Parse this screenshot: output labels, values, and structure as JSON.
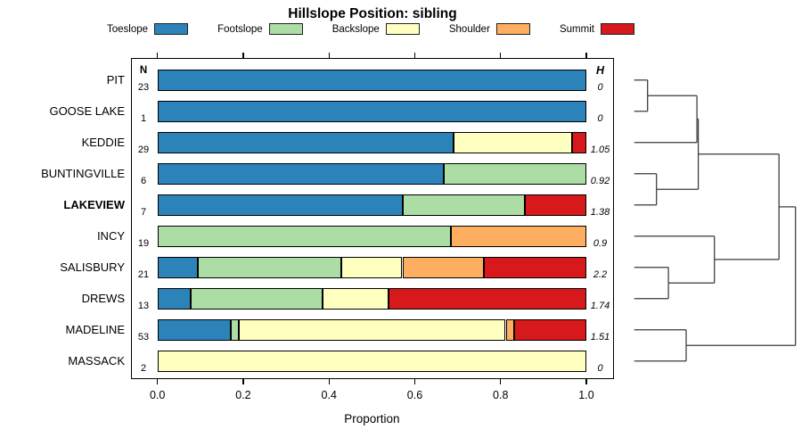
{
  "title": "Hillslope Position: sibling",
  "columns": {
    "n_header": "N",
    "h_header": "H"
  },
  "axis": {
    "xlabel": "Proportion"
  },
  "legend": [
    {
      "label": "Toeslope",
      "color": "#2B83BA"
    },
    {
      "label": "Footslope",
      "color": "#ABDDA4"
    },
    {
      "label": "Backslope",
      "color": "#FFFFBF"
    },
    {
      "label": "Shoulder",
      "color": "#FDAE61"
    },
    {
      "label": "Summit",
      "color": "#D7191C"
    }
  ],
  "chart_data": {
    "type": "bar",
    "variant": "horizontal-stacked-proportions-with-dendrogram",
    "title": "Hillslope Position: sibling",
    "xlabel": "Proportion",
    "xlim": [
      0,
      1
    ],
    "x_ticks": [
      0,
      0.2,
      0.4,
      0.6,
      0.8,
      1.0
    ],
    "x_tick_labels": [
      "0.0",
      "0.2",
      "0.4",
      "0.6",
      "0.8",
      "1.0"
    ],
    "categories": [
      "Toeslope",
      "Footslope",
      "Backslope",
      "Shoulder",
      "Summit"
    ],
    "colors": [
      "#2B83BA",
      "#ABDDA4",
      "#FFFFBF",
      "#FDAE61",
      "#D7191C"
    ],
    "rows": [
      {
        "name": "PIT",
        "n": 23,
        "h": "0",
        "bold": false,
        "proportions": [
          1,
          0,
          0,
          0,
          0
        ]
      },
      {
        "name": "GOOSE LAKE",
        "n": 1,
        "h": "0",
        "bold": false,
        "proportions": [
          1,
          0,
          0,
          0,
          0
        ]
      },
      {
        "name": "KEDDIE",
        "n": 29,
        "h": "1.05",
        "bold": false,
        "proportions": [
          0.69,
          0,
          0.276,
          0,
          0.034
        ]
      },
      {
        "name": "BUNTINGVILLE",
        "n": 6,
        "h": "0.92",
        "bold": false,
        "proportions": [
          0.667,
          0.333,
          0,
          0,
          0
        ]
      },
      {
        "name": "LAKEVIEW",
        "n": 7,
        "h": "1.38",
        "bold": true,
        "proportions": [
          0.571,
          0.286,
          0,
          0,
          0.143
        ]
      },
      {
        "name": "INCY",
        "n": 19,
        "h": "0.9",
        "bold": false,
        "proportions": [
          0,
          0.684,
          0,
          0.316,
          0
        ]
      },
      {
        "name": "SALISBURY",
        "n": 21,
        "h": "2.2",
        "bold": false,
        "proportions": [
          0.095,
          0.333,
          0.143,
          0.19,
          0.238
        ]
      },
      {
        "name": "DREWS",
        "n": 13,
        "h": "1.74",
        "bold": false,
        "proportions": [
          0.077,
          0.308,
          0.154,
          0,
          0.462
        ]
      },
      {
        "name": "MADELINE",
        "n": 53,
        "h": "1.51",
        "bold": false,
        "proportions": [
          0.17,
          0.019,
          0.623,
          0.019,
          0.17
        ]
      },
      {
        "name": "MASSACK",
        "n": 2,
        "h": "0",
        "bold": false,
        "proportions": [
          0,
          0,
          1,
          0,
          0
        ]
      }
    ],
    "dendrogram": {
      "h": 1.0,
      "c": [
        {
          "h": 0.898,
          "c": [
            {
              "h": 0.397,
              "c": [
                {
                  "h": 0.389,
                  "c": [
                    {
                      "h": 0.083,
                      "c": [
                        {
                          "leaf": "PIT"
                        },
                        {
                          "leaf": "GOOSE LAKE"
                        }
                      ]
                    },
                    {
                      "leaf": "KEDDIE"
                    }
                  ]
                },
                {
                  "h": 0.138,
                  "c": [
                    {
                      "leaf": "BUNTINGVILLE"
                    },
                    {
                      "leaf": "LAKEVIEW"
                    }
                  ]
                }
              ]
            },
            {
              "h": 0.497,
              "c": [
                {
                  "leaf": "INCY"
                },
                {
                  "h": 0.212,
                  "c": [
                    {
                      "leaf": "SALISBURY"
                    },
                    {
                      "leaf": "DREWS"
                    }
                  ]
                }
              ]
            }
          ]
        },
        {
          "h": 0.322,
          "c": [
            {
              "leaf": "MADELINE"
            },
            {
              "leaf": "MASSACK"
            }
          ]
        }
      ]
    }
  }
}
